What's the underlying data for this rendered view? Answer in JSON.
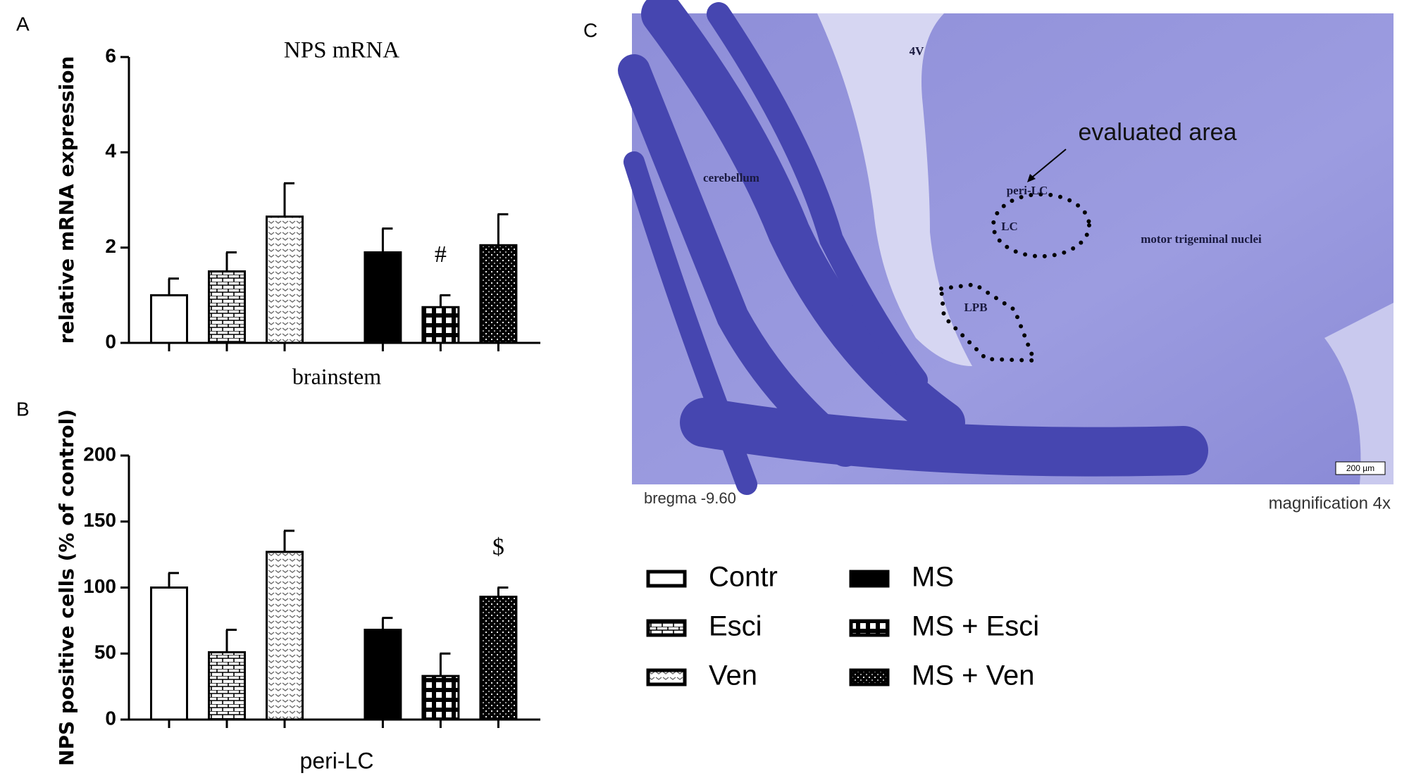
{
  "panel_labels": [
    "A",
    "B",
    "C"
  ],
  "chart_data": [
    {
      "type": "bar",
      "title": "NPS mRNA",
      "x_label": "brainstem",
      "y_label": "relative mRNA expression",
      "categories": [
        null,
        null,
        null,
        null,
        null,
        null
      ],
      "values": [
        1.0,
        1.5,
        2.65,
        1.9,
        0.75,
        2.05
      ],
      "errors": [
        0.35,
        0.4,
        0.7,
        0.5,
        0.25,
        0.65
      ],
      "markers": [
        null,
        null,
        null,
        null,
        "#",
        null
      ],
      "ylim": [
        0,
        6
      ],
      "yticks": [
        0,
        2,
        4,
        6
      ]
    },
    {
      "type": "bar",
      "x_label": "peri-LC",
      "y_label": "NPS positive cells (% of control)",
      "categories": [
        null,
        null,
        null,
        null,
        null,
        null
      ],
      "values": [
        100,
        51,
        127,
        68,
        33,
        93
      ],
      "errors": [
        11,
        17,
        16,
        9,
        17,
        7
      ],
      "markers": [
        null,
        null,
        null,
        null,
        null,
        "$"
      ],
      "ylim": [
        0,
        200
      ],
      "yticks": [
        0,
        50,
        100,
        150,
        200
      ]
    }
  ],
  "legend": {
    "names": [
      "Contr",
      "Esci",
      "Ven",
      "MS",
      "MS + Esci",
      "MS + Ven"
    ],
    "fills": [
      "white",
      "brick",
      "dots",
      "black",
      "grid",
      "darkdots"
    ]
  },
  "image_panel": {
    "labels": {
      "ventricle": "4V",
      "evaluated": "evaluated area",
      "cerebellum": "cerebellum",
      "peri_lc": "peri-LC",
      "lc": "LC",
      "motor": "motor trigeminal nuclei",
      "lpb": "LPB",
      "scale": "200 µm"
    },
    "caption_left": "bregma -9.60",
    "caption_right": "magnification 4x"
  }
}
